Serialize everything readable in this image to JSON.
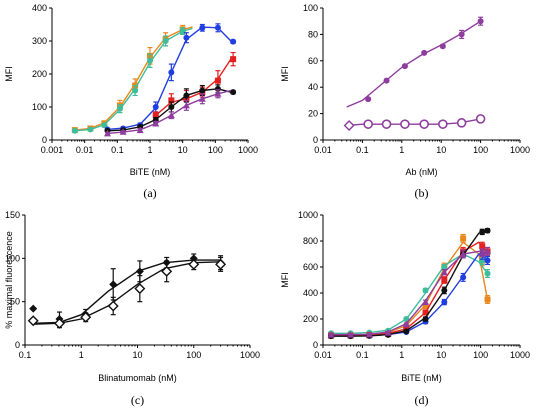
{
  "chart_data": [
    {
      "id": "a",
      "type": "line",
      "panel_label": "(a)",
      "xlabel": "BiTE (nM)",
      "ylabel": "MFI",
      "xscale": "log",
      "xlim": [
        0.001,
        1000
      ],
      "ylim": [
        0,
        400
      ],
      "xticks": [
        "0.001",
        "0.01",
        "0.1",
        "1",
        "10",
        "100",
        "1000"
      ],
      "yticks": [
        "0",
        "100",
        "200",
        "300",
        "400"
      ],
      "series": [
        {
          "color": "#e8891e",
          "marker": "square",
          "x": [
            0.005,
            0.015,
            0.04,
            0.12,
            0.35,
            1.0,
            3.0,
            10
          ],
          "y": [
            30,
            35,
            50,
            105,
            165,
            255,
            305,
            335
          ],
          "err": [
            5,
            5,
            8,
            15,
            20,
            25,
            20,
            12
          ],
          "fit_x": [
            0.005,
            0.015,
            0.04,
            0.12,
            0.35,
            1,
            3,
            10,
            20
          ],
          "fit_y": [
            30,
            35,
            52,
            100,
            170,
            250,
            310,
            335,
            342
          ]
        },
        {
          "color": "#3dbd9c",
          "marker": "circle",
          "x": [
            0.005,
            0.015,
            0.04,
            0.12,
            0.35,
            1.0,
            3.0,
            10
          ],
          "y": [
            28,
            32,
            45,
            95,
            150,
            240,
            300,
            330
          ],
          "err": [
            4,
            4,
            6,
            12,
            15,
            20,
            15,
            10
          ],
          "fit_x": [
            0.005,
            0.015,
            0.04,
            0.12,
            0.35,
            1,
            3,
            10,
            20
          ],
          "fit_y": [
            28,
            32,
            46,
            92,
            155,
            235,
            300,
            330,
            338
          ]
        },
        {
          "color": "#1f3de0",
          "marker": "circle",
          "x": [
            0.05,
            0.15,
            0.5,
            1.5,
            4.5,
            13,
            40,
            120,
            350
          ],
          "y": [
            32,
            35,
            45,
            100,
            205,
            310,
            340,
            340,
            298
          ],
          "err": [
            3,
            4,
            6,
            15,
            25,
            15,
            10,
            12,
            5
          ],
          "fit_x": [
            0.05,
            0.15,
            0.5,
            1.5,
            4.5,
            13,
            40,
            120,
            300
          ],
          "fit_y": [
            32,
            36,
            48,
            98,
            205,
            305,
            342,
            340,
            300
          ]
        },
        {
          "color": "#e51e1e",
          "marker": "square",
          "x": [
            1.5,
            4.5,
            13,
            40,
            120,
            350
          ],
          "y": [
            75,
            120,
            125,
            145,
            180,
            245
          ],
          "err": [
            10,
            20,
            25,
            15,
            30,
            20
          ],
          "fit_x": [
            1.5,
            4.5,
            13,
            40,
            120,
            300
          ],
          "fit_y": [
            75,
            115,
            125,
            145,
            185,
            245
          ]
        },
        {
          "color": "#111111",
          "marker": "circle",
          "x": [
            0.05,
            0.15,
            0.5,
            1.5,
            4.5,
            13,
            40,
            120,
            350
          ],
          "y": [
            28,
            30,
            40,
            60,
            100,
            135,
            150,
            155,
            145
          ],
          "err": [
            3,
            3,
            5,
            8,
            15,
            20,
            15,
            12,
            5
          ],
          "fit_x": [
            0.05,
            0.15,
            0.5,
            1.5,
            4.5,
            13,
            40,
            120,
            300
          ],
          "fit_y": [
            28,
            30,
            40,
            62,
            100,
            135,
            150,
            155,
            145
          ]
        },
        {
          "color": "#8e3d9e",
          "marker": "triangle",
          "x": [
            0.05,
            0.15,
            0.5,
            1.5,
            4.5,
            13,
            40,
            120
          ],
          "y": [
            20,
            25,
            30,
            50,
            75,
            105,
            125,
            140
          ],
          "err": [
            3,
            3,
            5,
            6,
            10,
            15,
            15,
            12
          ],
          "fit_x": [
            0.05,
            0.15,
            0.5,
            1.5,
            4.5,
            13,
            40,
            120,
            300
          ],
          "fit_y": [
            20,
            24,
            31,
            50,
            75,
            105,
            125,
            140,
            150
          ]
        }
      ]
    },
    {
      "id": "b",
      "type": "line",
      "panel_label": "(b)",
      "xlabel": "Ab (nM)",
      "ylabel": "MFI",
      "xscale": "log",
      "xlim": [
        0.01,
        1000
      ],
      "ylim": [
        0,
        100
      ],
      "xticks": [
        "0.01",
        "0.1",
        "1",
        "10",
        "100",
        "1000"
      ],
      "yticks": [
        "0",
        "20",
        "40",
        "60",
        "80",
        "100"
      ],
      "series": [
        {
          "color": "#8e3d9e",
          "marker": "circle",
          "x": [
            0.14,
            0.41,
            1.2,
            3.7,
            11,
            33,
            100
          ],
          "y": [
            31,
            45,
            56,
            66,
            71,
            80,
            90
          ],
          "err": [
            1,
            1,
            1,
            1,
            1,
            3,
            3
          ],
          "fit_x": [
            0.04,
            0.1,
            0.3,
            1,
            3,
            10,
            30,
            100
          ],
          "fit_y": [
            25,
            30,
            42,
            55,
            64,
            72,
            80,
            90
          ]
        },
        {
          "color": "#8e3d9e",
          "marker": "open-circle",
          "x": [
            0.14,
            0.41,
            1.2,
            3.7,
            11,
            33,
            100
          ],
          "y": [
            12,
            12,
            12,
            12,
            12,
            13,
            16
          ],
          "err": [
            1,
            1,
            1,
            1,
            1,
            1,
            2
          ],
          "fit_x": [
            0.04,
            0.1,
            0.3,
            1,
            3,
            10,
            30,
            100
          ],
          "fit_y": [
            11,
            12,
            12,
            12,
            12,
            12,
            13,
            16
          ]
        },
        {
          "color": "#8e3d9e",
          "marker": "open-diamond",
          "x": [
            0.046
          ],
          "y": [
            11
          ],
          "err": [
            1
          ],
          "fit_x": [],
          "fit_y": []
        }
      ]
    },
    {
      "id": "c",
      "type": "line",
      "panel_label": "(c)",
      "xlabel": "Blinatumomab (nM)",
      "ylabel": "% maximal fluorescence",
      "xscale": "log",
      "xlim": [
        0.1,
        1000
      ],
      "ylim": [
        0,
        150
      ],
      "xticks": [
        "0.1",
        "1",
        "10",
        "100",
        "1000"
      ],
      "yticks": [
        "0",
        "50",
        "100",
        "150"
      ],
      "series": [
        {
          "color": "#111111",
          "marker": "diamond",
          "x": [
            0.14,
            0.41,
            1.2,
            3.7,
            11,
            33,
            100,
            300
          ],
          "y": [
            42,
            30,
            35,
            70,
            85,
            95,
            100,
            95
          ],
          "err": [
            0,
            8,
            6,
            18,
            12,
            6,
            5,
            8
          ],
          "fit_x": [
            0.14,
            0.4,
            1,
            3,
            10,
            30,
            100,
            300
          ],
          "fit_y": [
            25,
            26,
            35,
            62,
            85,
            95,
            98,
            98
          ]
        },
        {
          "color": "#111111",
          "marker": "open-diamond",
          "x": [
            0.14,
            0.41,
            1.2,
            3.7,
            11,
            33,
            100,
            300
          ],
          "y": [
            28,
            25,
            32,
            45,
            65,
            85,
            93,
            93
          ],
          "err": [
            0,
            5,
            5,
            10,
            15,
            12,
            6,
            8
          ],
          "fit_x": [
            0.14,
            0.4,
            1,
            3,
            10,
            30,
            100,
            300
          ],
          "fit_y": [
            24,
            25,
            30,
            45,
            70,
            88,
            95,
            96
          ]
        }
      ]
    },
    {
      "id": "d",
      "type": "line",
      "panel_label": "(d)",
      "xlabel": "BiTE (nM)",
      "ylabel": "MFI",
      "xscale": "log",
      "xlim": [
        0.01,
        1000
      ],
      "ylim": [
        0,
        1000
      ],
      "xticks": [
        "0.01",
        "0.1",
        "1",
        "10",
        "100",
        "1000"
      ],
      "yticks": [
        "0",
        "200",
        "400",
        "600",
        "800",
        "1000"
      ],
      "series": [
        {
          "color": "#e8891e",
          "marker": "square",
          "x": [
            0.016,
            0.05,
            0.15,
            0.45,
            1.3,
            4,
            12,
            36,
            110,
            150
          ],
          "y": [
            75,
            75,
            80,
            90,
            140,
            300,
            600,
            820,
            650,
            350
          ],
          "err": [
            5,
            5,
            5,
            8,
            10,
            20,
            30,
            30,
            40,
            30
          ],
          "fit_x": [
            0.016,
            0.05,
            0.15,
            0.45,
            1.3,
            4,
            12,
            36,
            90,
            150
          ],
          "fit_y": [
            75,
            75,
            80,
            95,
            150,
            310,
            590,
            790,
            700,
            350
          ]
        },
        {
          "color": "#3dbd9c",
          "marker": "circle",
          "x": [
            0.016,
            0.05,
            0.15,
            0.45,
            1.3,
            4,
            12,
            36,
            110,
            150
          ],
          "y": [
            90,
            90,
            95,
            110,
            200,
            420,
            600,
            700,
            650,
            550
          ],
          "err": [
            5,
            5,
            5,
            8,
            10,
            15,
            20,
            30,
            30,
            30
          ],
          "fit_x": [
            0.016,
            0.05,
            0.15,
            0.45,
            1.3,
            4,
            12,
            36,
            90,
            150
          ],
          "fit_y": [
            90,
            90,
            95,
            115,
            200,
            400,
            610,
            700,
            640,
            550
          ]
        },
        {
          "color": "#1f3de0",
          "marker": "circle",
          "x": [
            0.016,
            0.05,
            0.15,
            0.45,
            1.3,
            4,
            12,
            36,
            110,
            150
          ],
          "y": [
            70,
            70,
            72,
            80,
            100,
            180,
            330,
            520,
            700,
            650
          ],
          "err": [
            5,
            5,
            5,
            5,
            8,
            15,
            20,
            30,
            40,
            30
          ],
          "fit_x": [
            0.016,
            0.05,
            0.15,
            0.45,
            1.3,
            4,
            12,
            36,
            90,
            150
          ],
          "fit_y": [
            70,
            70,
            72,
            80,
            100,
            180,
            330,
            530,
            700,
            660
          ]
        },
        {
          "color": "#e51e1e",
          "marker": "square",
          "x": [
            0.016,
            0.05,
            0.15,
            0.45,
            1.3,
            4,
            12,
            36,
            110,
            150
          ],
          "y": [
            72,
            72,
            75,
            85,
            120,
            250,
            500,
            720,
            760,
            720
          ],
          "err": [
            5,
            5,
            5,
            5,
            8,
            15,
            25,
            30,
            30,
            30
          ],
          "fit_x": [
            0.016,
            0.05,
            0.15,
            0.45,
            1.3,
            4,
            12,
            36,
            90,
            150
          ],
          "fit_y": [
            72,
            72,
            75,
            88,
            125,
            250,
            500,
            720,
            790,
            720
          ]
        },
        {
          "color": "#111111",
          "marker": "circle",
          "x": [
            0.016,
            0.05,
            0.15,
            0.45,
            1.3,
            4,
            12,
            36,
            110,
            150
          ],
          "y": [
            68,
            68,
            70,
            78,
            105,
            200,
            420,
            700,
            870,
            880
          ],
          "err": [
            5,
            5,
            5,
            5,
            8,
            15,
            25,
            30,
            20,
            15
          ],
          "fit_x": [
            0.016,
            0.05,
            0.15,
            0.45,
            1.3,
            4,
            12,
            36,
            90,
            150
          ],
          "fit_y": [
            68,
            68,
            70,
            80,
            110,
            210,
            420,
            690,
            860,
            880
          ]
        },
        {
          "color": "#8e3d9e",
          "marker": "triangle",
          "x": [
            0.016,
            0.05,
            0.15,
            0.45,
            1.3,
            4,
            12,
            36,
            110,
            150
          ],
          "y": [
            80,
            80,
            82,
            95,
            160,
            330,
            560,
            700,
            710,
            720
          ],
          "err": [
            5,
            5,
            5,
            8,
            10,
            15,
            20,
            30,
            30,
            30
          ],
          "fit_x": [
            0.016,
            0.05,
            0.15,
            0.45,
            1.3,
            4,
            12,
            36,
            90,
            150
          ],
          "fit_y": [
            80,
            80,
            82,
            100,
            165,
            340,
            560,
            700,
            720,
            730
          ]
        }
      ]
    }
  ]
}
